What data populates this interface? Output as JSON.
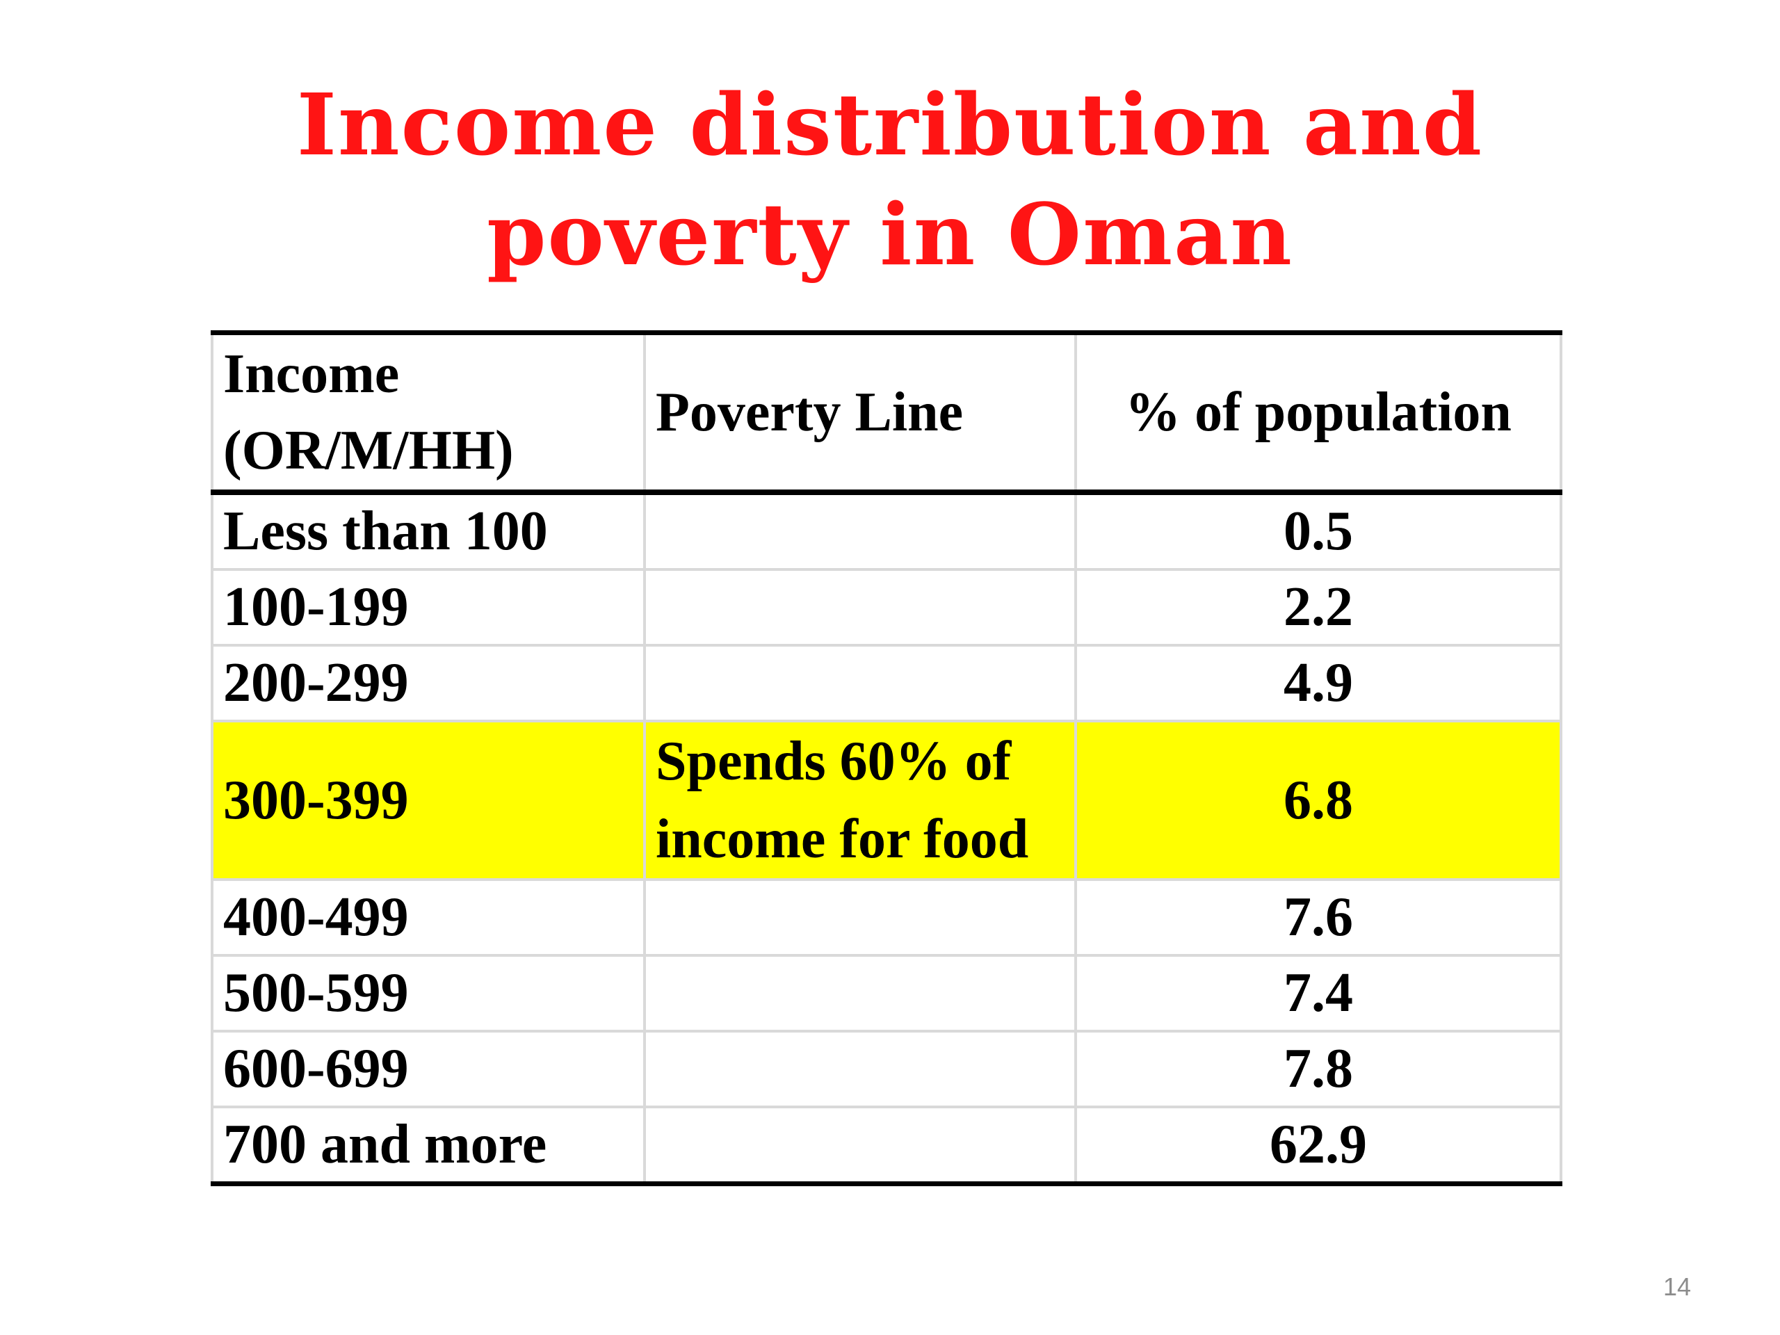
{
  "slide": {
    "title_line1": "Income distribution and",
    "title_line2": "poverty in Oman",
    "page_number": "14"
  },
  "table": {
    "headers": {
      "income_line1": "Income",
      "income_line2": "(OR/M/HH)",
      "poverty_line": "Poverty Line",
      "percent": "% of population"
    },
    "rows": [
      {
        "income": "Less than 100",
        "poverty": "",
        "percent": "0.5"
      },
      {
        "income": "100-199",
        "poverty": "",
        "percent": "2.2"
      },
      {
        "income": "200-299",
        "poverty": "",
        "percent": "4.9"
      },
      {
        "income": "300-399",
        "poverty_line1": "Spends 60% of",
        "poverty_line2": "income for food",
        "percent": "6.8"
      },
      {
        "income": "400-499",
        "poverty": "",
        "percent": "7.6"
      },
      {
        "income": "500-599",
        "poverty": "",
        "percent": "7.4"
      },
      {
        "income": "600-699",
        "poverty": "",
        "percent": "7.8"
      },
      {
        "income": "700 and more",
        "poverty": "",
        "percent": "62.9"
      }
    ]
  },
  "colors": {
    "title": "#ff1414",
    "highlight": "#ffff00",
    "grid": "#d9d9d9",
    "rule": "#000000"
  }
}
